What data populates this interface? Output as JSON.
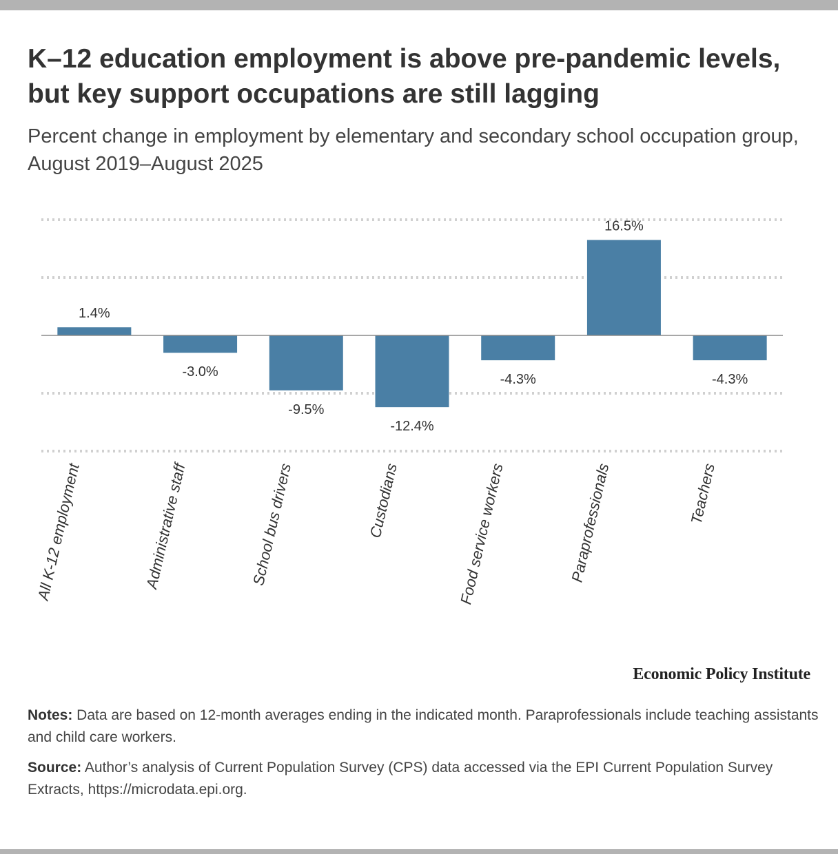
{
  "chart_data": {
    "type": "bar",
    "title": "K–12 education employment is above pre-pandemic levels, but key support occupations are still lagging",
    "subtitle": "Percent change in employment by elementary and secondary school occupation group, August 2019–August 2025",
    "categories": [
      "All K-12 employment",
      "Administrative staff",
      "School bus drivers",
      "Custodians",
      "Food service workers",
      "Paraprofessionals",
      "Teachers"
    ],
    "values": [
      1.4,
      -3.0,
      -9.5,
      -12.4,
      -4.3,
      16.5,
      -4.3
    ],
    "value_labels": [
      "1.4%",
      "-3.0%",
      "-9.5%",
      "-12.4%",
      "-4.3%",
      "16.5%",
      "-4.3%"
    ],
    "xlabel": "",
    "ylabel": "",
    "ylim": [
      -20,
      20
    ],
    "grid": true,
    "grid_style": "dotted",
    "legend": "none",
    "bar_color": "#4a7fa5"
  },
  "branding": "Economic Policy Institute",
  "notes": {
    "label": "Notes:",
    "text": " Data are based on 12-month averages ending in the indicated month. Paraprofessionals include teaching assistants and child care workers."
  },
  "source": {
    "label": "Source:",
    "text": " Author’s analysis of Current Population Survey (CPS) data accessed via the EPI Current Population Survey Extracts, https://microdata.epi.org."
  }
}
